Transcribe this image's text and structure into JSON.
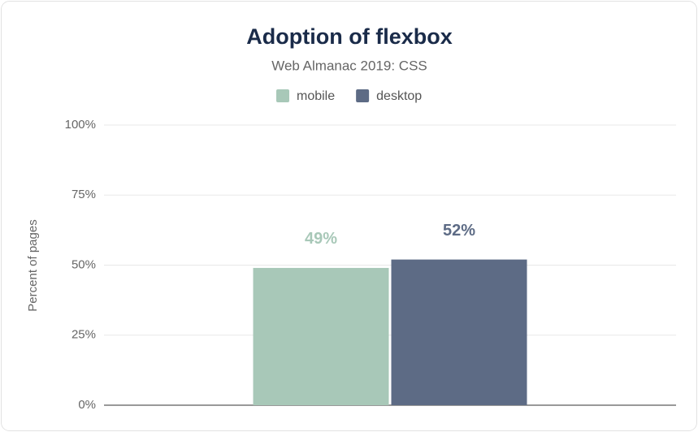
{
  "chart_data": {
    "type": "bar",
    "title": "Adoption of flexbox",
    "subtitle": "Web Almanac 2019: CSS",
    "y_label": "Percent of pages",
    "categories": [
      null
    ],
    "series": [
      {
        "name": "mobile",
        "color": "#a8c8b8",
        "values": [
          49
        ],
        "value_labels": [
          "49%"
        ]
      },
      {
        "name": "desktop",
        "color": "#5d6b85",
        "values": [
          52
        ],
        "value_labels": [
          "52%"
        ]
      }
    ],
    "ylim": [
      0,
      100
    ],
    "yticks": [
      {
        "value": 0,
        "label": "0%"
      },
      {
        "value": 25,
        "label": "25%"
      },
      {
        "value": 50,
        "label": "50%"
      },
      {
        "value": 75,
        "label": "75%"
      },
      {
        "value": 100,
        "label": "100%"
      }
    ],
    "grid": true,
    "legend": "top"
  }
}
